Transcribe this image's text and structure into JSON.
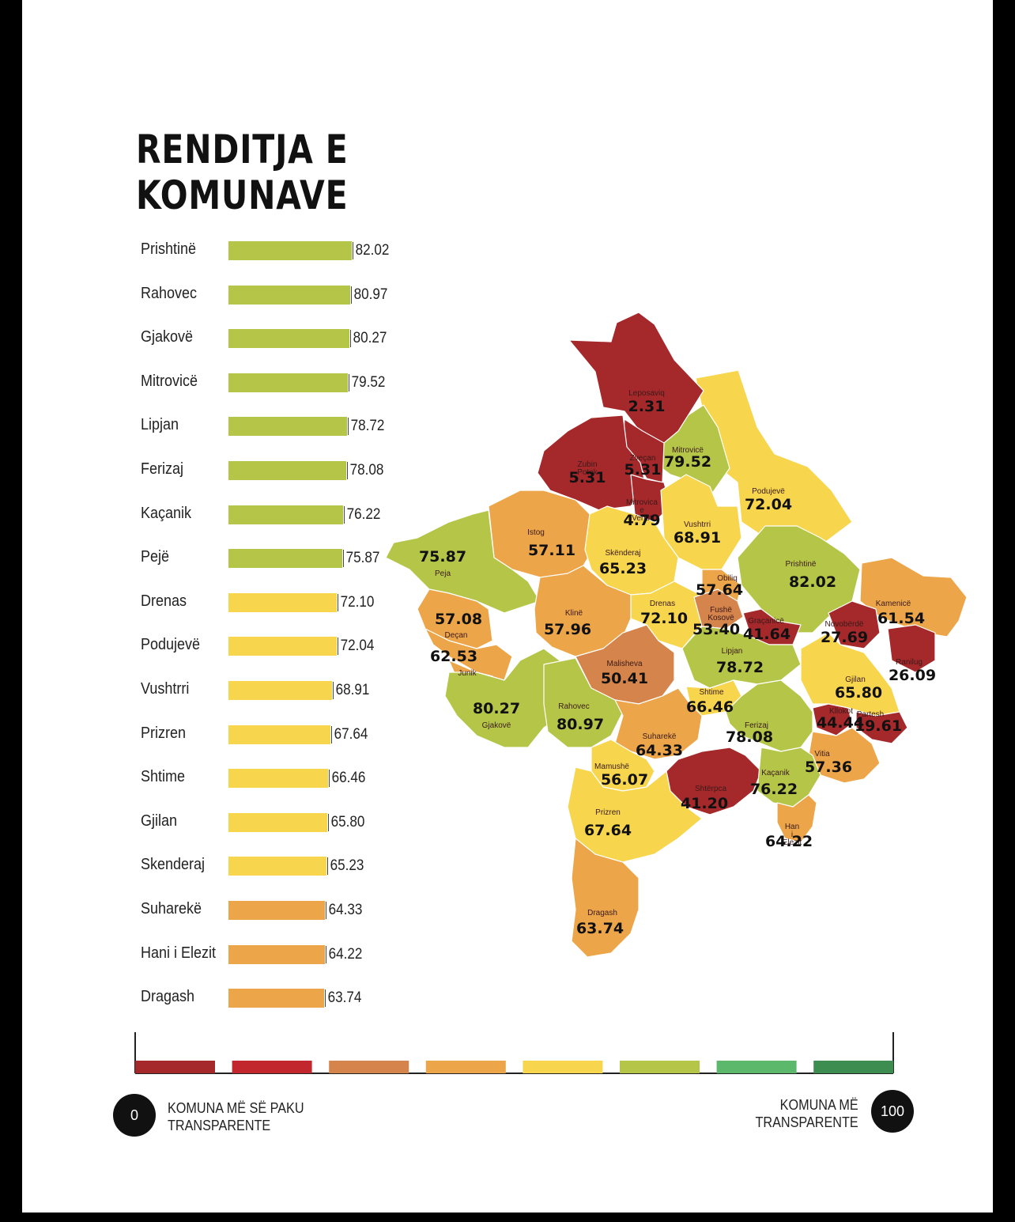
{
  "title": {
    "line1": "RENDITJA E",
    "line2": "KOMUNAVE"
  },
  "chart_data": [
    {
      "type": "bar",
      "orientation": "horizontal",
      "categories": [
        "Prishtinë",
        "Rahovec",
        "Gjakovë",
        "Mitrovicë",
        "Lipjan",
        "Ferizaj",
        "Kaçanik",
        "Pejë",
        "Drenas",
        "Podujevë",
        "Vushtrri",
        "Prizren",
        "Shtime",
        "Gjilan",
        "Skenderaj",
        "Suharekë",
        "Hani i Elezit",
        "Dragash"
      ],
      "values": [
        82.02,
        80.97,
        80.27,
        79.52,
        78.72,
        78.08,
        76.22,
        75.87,
        72.1,
        72.04,
        68.91,
        67.64,
        66.46,
        65.8,
        65.23,
        64.33,
        64.22,
        63.74
      ],
      "value_labels": [
        "82.02",
        "80.97",
        "80.27",
        "79.52",
        "78.72",
        "78.08",
        "76.22",
        "75.87",
        "72.10",
        "72.04",
        "68.91",
        "67.64",
        "66.46",
        "65.80",
        "65.23",
        "64.33",
        "64.22",
        "63.74"
      ],
      "colors": [
        "#b5c548",
        "#b5c548",
        "#b5c548",
        "#b5c548",
        "#b5c548",
        "#b5c548",
        "#b5c548",
        "#b5c548",
        "#f7d54d",
        "#f7d54d",
        "#f7d54d",
        "#f7d54d",
        "#f7d54d",
        "#f7d54d",
        "#f7d54d",
        "#eca549",
        "#eca549",
        "#eca549"
      ]
    },
    {
      "type": "choropleth",
      "municipalities": [
        {
          "name": "Leposaviq",
          "value_label": "2.31",
          "value": 2.31,
          "color": "#a5282b"
        },
        {
          "name": "Zubin Potok",
          "value_label": "5.31",
          "value": 5.31,
          "color": "#a5282b"
        },
        {
          "name": "Zveçan",
          "value_label": "5.31",
          "value": 5.31,
          "color": "#a5282b"
        },
        {
          "name": "Mitrovicë",
          "value_label": "79.52",
          "value": 79.52,
          "color": "#b5c548"
        },
        {
          "name": "Mitrovica e Veriut",
          "value_label": "4.79",
          "value": 4.79,
          "color": "#a5282b"
        },
        {
          "name": "Podujevë",
          "value_label": "72.04",
          "value": 72.04,
          "color": "#f7d54d"
        },
        {
          "name": "Vushtrri",
          "value_label": "68.91",
          "value": 68.91,
          "color": "#f7d54d"
        },
        {
          "name": "Istog",
          "value_label": "57.11",
          "value": 57.11,
          "color": "#eca549"
        },
        {
          "name": "Peja",
          "value_label": "75.87",
          "value": 75.87,
          "color": "#b5c548"
        },
        {
          "name": "Skënderaj",
          "value_label": "65.23",
          "value": 65.23,
          "color": "#f7d54d"
        },
        {
          "name": "Obiliq",
          "value_label": "57.64",
          "value": 57.64,
          "color": "#eca549"
        },
        {
          "name": "Prishtinë",
          "value_label": "82.02",
          "value": 82.02,
          "color": "#b5c548"
        },
        {
          "name": "Kamenicë",
          "value_label": "61.54",
          "value": 61.54,
          "color": "#eca549"
        },
        {
          "name": "",
          "value_label": "57.08",
          "value": 57.08,
          "color": "#eca549"
        },
        {
          "name": "Deçan",
          "value_label": "62.53",
          "value": 62.53,
          "color": "#eca549"
        },
        {
          "name": "Junik",
          "value_label": "",
          "color": "#eca549"
        },
        {
          "name": "Klinë",
          "value_label": "57.96",
          "value": 57.96,
          "color": "#eca549"
        },
        {
          "name": "Drenas",
          "value_label": "72.10",
          "value": 72.1,
          "color": "#f7d54d"
        },
        {
          "name": "Fushë Kosovë",
          "value_label": "53.40",
          "value": 53.4,
          "color": "#d5844b"
        },
        {
          "name": "Graçanicë",
          "value_label": "41.64",
          "value": 41.64,
          "color": "#a5282b"
        },
        {
          "name": "Novobërdë",
          "value_label": "27.69",
          "value": 27.69,
          "color": "#a5282b"
        },
        {
          "name": "Ranilug",
          "value_label": "26.09",
          "value": 26.09,
          "color": "#a5282b"
        },
        {
          "name": "Malisheva",
          "value_label": "50.41",
          "value": 50.41,
          "color": "#d5844b"
        },
        {
          "name": "Lipjan",
          "value_label": "78.72",
          "value": 78.72,
          "color": "#b5c548"
        },
        {
          "name": "Gjilan",
          "value_label": "65.80",
          "value": 65.8,
          "color": "#f7d54d"
        },
        {
          "name": "Shtime",
          "value_label": "66.46",
          "value": 66.46,
          "color": "#f7d54d"
        },
        {
          "name": "Gjakovë",
          "value_label": "80.27",
          "value": 80.27,
          "color": "#b5c548"
        },
        {
          "name": "Rahovec",
          "value_label": "80.97",
          "value": 80.97,
          "color": "#b5c548"
        },
        {
          "name": "Kllokot",
          "value_label": "44.44",
          "value": 44.44,
          "color": "#a5282b"
        },
        {
          "name": "Partesh",
          "value_label": "19.61",
          "value": 19.61,
          "color": "#a5282b"
        },
        {
          "name": "Suharekë",
          "value_label": "64.33",
          "value": 64.33,
          "color": "#eca549"
        },
        {
          "name": "Ferizaj",
          "value_label": "78.08",
          "value": 78.08,
          "color": "#b5c548"
        },
        {
          "name": "Vitia",
          "value_label": "57.36",
          "value": 57.36,
          "color": "#eca549"
        },
        {
          "name": "Mamushë",
          "value_label": "56.07",
          "value": 56.07,
          "color": "#f7d54d"
        },
        {
          "name": "Shtërpca",
          "value_label": "41.20",
          "value": 41.2,
          "color": "#a5282b"
        },
        {
          "name": "Kaçanik",
          "value_label": "76.22",
          "value": 76.22,
          "color": "#b5c548"
        },
        {
          "name": "Prizren",
          "value_label": "67.64",
          "value": 67.64,
          "color": "#f7d54d"
        },
        {
          "name": "Han i Elezit",
          "value_label": "64.22",
          "value": 64.22,
          "color": "#eca549"
        },
        {
          "name": "Dragash",
          "value_label": "63.74",
          "value": 63.74,
          "color": "#eca549"
        }
      ]
    }
  ],
  "legend": {
    "scale_colors": [
      "#a5282b",
      "#c1272d",
      "#d5844b",
      "#eca549",
      "#f7d54d",
      "#b5c548",
      "#5cb86a",
      "#3d8c50"
    ],
    "min_label": "0",
    "min_text_1": "KOMUNA MË SË PAKU",
    "min_text_2": "TRANSPARENTE",
    "max_label": "100",
    "max_text_1": "KOMUNA MË",
    "max_text_2": "TRANSPARENTE"
  }
}
